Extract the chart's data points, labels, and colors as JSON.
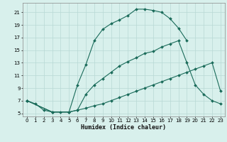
{
  "xlabel": "Humidex (Indice chaleur)",
  "bg_color": "#d8f0ec",
  "grid_color": "#b8d8d4",
  "line_color": "#1a6b5a",
  "xlim": [
    -0.5,
    23.5
  ],
  "ylim": [
    4.5,
    22.5
  ],
  "xticks": [
    0,
    1,
    2,
    3,
    4,
    5,
    6,
    7,
    8,
    9,
    10,
    11,
    12,
    13,
    14,
    15,
    16,
    17,
    18,
    19,
    20,
    21,
    22,
    23
  ],
  "yticks": [
    5,
    7,
    9,
    11,
    13,
    15,
    17,
    19,
    21
  ],
  "line1_x": [
    0,
    1,
    2,
    3,
    4,
    5,
    6,
    7,
    8,
    9,
    10,
    11,
    12,
    13,
    14,
    15,
    16,
    17,
    18,
    19
  ],
  "line1_y": [
    7.0,
    6.5,
    5.5,
    5.2,
    5.2,
    5.2,
    9.5,
    12.7,
    16.5,
    18.3,
    19.2,
    19.8,
    20.5,
    21.5,
    21.5,
    21.3,
    21.0,
    20.0,
    18.5,
    16.5
  ],
  "line2_x": [
    0,
    3,
    5,
    6,
    7,
    8,
    9,
    10,
    11,
    12,
    13,
    14,
    15,
    16,
    17,
    18,
    19,
    20,
    21,
    22,
    23
  ],
  "line2_y": [
    7.0,
    5.2,
    5.2,
    5.5,
    8.0,
    9.5,
    10.5,
    11.5,
    12.5,
    13.2,
    13.8,
    14.5,
    14.8,
    15.5,
    16.0,
    16.5,
    13.0,
    9.5,
    8.0,
    7.0,
    6.5
  ],
  "line3_x": [
    0,
    3,
    5,
    6,
    7,
    8,
    9,
    10,
    11,
    12,
    13,
    14,
    15,
    16,
    17,
    18,
    19,
    20,
    21,
    22,
    23
  ],
  "line3_y": [
    7.0,
    5.2,
    5.2,
    5.5,
    5.8,
    6.2,
    6.5,
    7.0,
    7.5,
    8.0,
    8.5,
    9.0,
    9.5,
    10.0,
    10.5,
    11.0,
    11.5,
    12.0,
    12.5,
    13.0,
    8.5
  ]
}
